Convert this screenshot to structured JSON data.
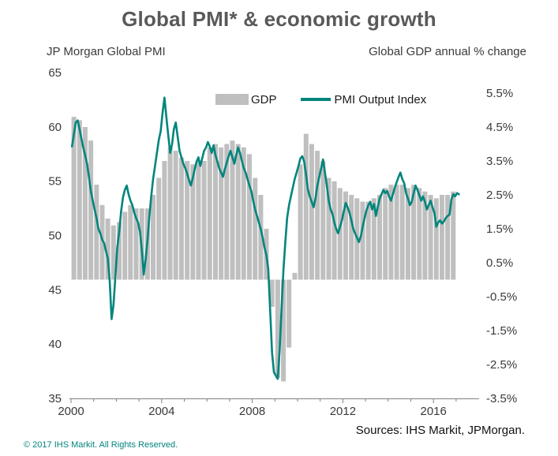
{
  "sources": "Sources: IHS Markit, JPMorgan.",
  "copyright": "© 2017 IHS Markit. All Rights Reserved.",
  "colors": {
    "bar": "#BFBFBF",
    "line": "#00857C",
    "title_text": "#595959",
    "axis_text": "#3a3a3a",
    "legend_text": "#1a1a1a",
    "axis_line": "#808080",
    "copyright_text": "#00847E"
  },
  "chart_data": {
    "type": "bar+line (dual axis)",
    "title": "Global PMI* & economic growth",
    "grid": false,
    "legend_position": "top-center-inside",
    "left_axis": {
      "label": "JP Morgan Global PMI",
      "min": 35,
      "max": 65,
      "ticks": [
        65,
        60,
        55,
        50,
        45,
        40,
        35
      ]
    },
    "right_axis": {
      "label": "Global GDP annual % change",
      "min": -3.5,
      "max": 5.5,
      "ticks": [
        5.5,
        4.5,
        3.5,
        2.5,
        1.5,
        0.5,
        -0.5,
        -1.5,
        -2.5,
        -3.5
      ],
      "bar_baseline": 0
    },
    "x_axis": {
      "start_year": 2000,
      "tick_end_year": 2017,
      "tick_labels": [
        "2000",
        "2004",
        "2008",
        "2012",
        "2016"
      ]
    },
    "series": [
      {
        "name": "GDP",
        "type": "bar",
        "axis": "right",
        "unit": "% annual change",
        "frequency": "quarterly",
        "start": "2000-Q1",
        "values": [
          4.8,
          4.7,
          4.5,
          4.1,
          2.8,
          2.2,
          1.8,
          1.6,
          1.7,
          2.0,
          2.2,
          2.1,
          2.1,
          2.1,
          2.5,
          3.0,
          3.5,
          3.9,
          3.8,
          3.6,
          3.5,
          3.4,
          3.5,
          3.5,
          3.9,
          4.0,
          3.9,
          4.0,
          4.1,
          4.0,
          3.9,
          3.7,
          3.0,
          2.5,
          1.5,
          -0.8,
          -2.9,
          -3.0,
          -2.0,
          0.2,
          3.4,
          4.3,
          4.0,
          3.8,
          3.5,
          3.0,
          2.9,
          2.7,
          2.6,
          2.5,
          2.4,
          2.3,
          2.3,
          2.4,
          2.5,
          2.7,
          2.8,
          2.8,
          2.8,
          2.7,
          2.8,
          2.7,
          2.6,
          2.5,
          2.4,
          2.5,
          2.5,
          2.6
        ]
      },
      {
        "name": "PMI Output Index",
        "type": "line",
        "axis": "left",
        "unit": "index",
        "frequency": "monthly",
        "start": "2000-01",
        "values": [
          58.2,
          59.3,
          60.4,
          60.6,
          59.8,
          58.9,
          58.1,
          57.4,
          56.6,
          55.4,
          54.1,
          53.2,
          52.4,
          51.6,
          50.6,
          50.2,
          49.6,
          49.3,
          48.6,
          47.9,
          45.8,
          42.3,
          43.6,
          46.2,
          48.9,
          50.3,
          52.2,
          53.5,
          54.2,
          54.6,
          53.8,
          53.2,
          52.8,
          52.1,
          51.6,
          51.2,
          50.4,
          48.7,
          46.4,
          47.8,
          49.6,
          51.8,
          53.6,
          55.2,
          56.4,
          57.6,
          58.8,
          59.6,
          61.3,
          62.7,
          60.9,
          59.2,
          57.6,
          58.4,
          59.8,
          60.4,
          59.1,
          57.8,
          57.2,
          56.6,
          56.2,
          55.7,
          55.1,
          54.6,
          55.3,
          56.1,
          56.8,
          57.2,
          56.4,
          57.1,
          57.8,
          58.1,
          58.6,
          58.2,
          57.6,
          58.3,
          57.4,
          56.8,
          56.2,
          55.8,
          55.4,
          56.1,
          56.7,
          57.3,
          57.8,
          57.2,
          56.6,
          57.4,
          58.1,
          57.6,
          56.9,
          56.2,
          55.8,
          55.2,
          54.6,
          54.1,
          53.2,
          52.4,
          51.8,
          51.2,
          50.6,
          49.8,
          48.9,
          48.2,
          46.9,
          43.1,
          39.2,
          37.4,
          37.1,
          36.8,
          39.4,
          43.2,
          46.8,
          49.4,
          51.6,
          52.8,
          53.6,
          54.4,
          55.2,
          55.8,
          56.4,
          57.1,
          57.3,
          56.8,
          55.6,
          54.2,
          53.6,
          53.1,
          52.6,
          53.4,
          54.6,
          55.4,
          56.2,
          57.0,
          55.8,
          54.6,
          53.2,
          52.4,
          52.0,
          51.2,
          50.6,
          50.2,
          50.8,
          51.4,
          52.2,
          53.0,
          52.6,
          52.1,
          51.4,
          50.6,
          50.2,
          49.8,
          49.4,
          49.9,
          50.8,
          51.6,
          52.3,
          52.8,
          53.1,
          52.4,
          52.9,
          51.8,
          52.6,
          53.4,
          53.8,
          54.2,
          53.9,
          54.1,
          53.6,
          53.2,
          53.8,
          54.4,
          54.9,
          55.4,
          55.8,
          55.2,
          54.8,
          53.9,
          53.4,
          52.8,
          53.1,
          53.9,
          54.6,
          54.2,
          53.7,
          53.2,
          53.6,
          53.1,
          52.4,
          52.8,
          53.2,
          52.6,
          52.1,
          50.8,
          51.2,
          51.4,
          51.1,
          51.3,
          51.6,
          51.8,
          51.9,
          53.3,
          53.8,
          53.6,
          53.9,
          53.8
        ]
      }
    ]
  }
}
